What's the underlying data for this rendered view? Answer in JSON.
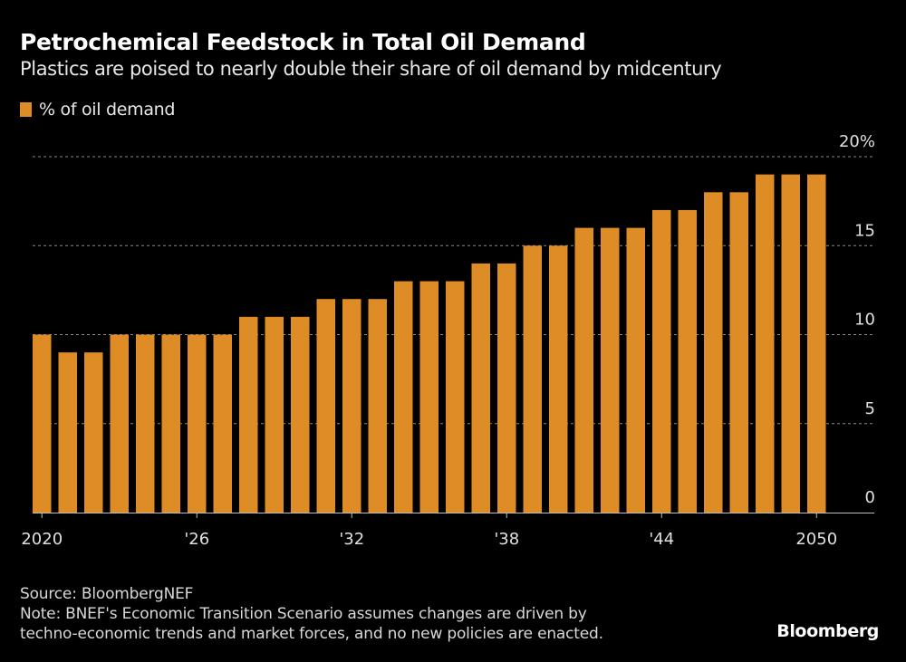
{
  "header": {
    "title": "Petrochemical Feedstock in Total Oil Demand",
    "subtitle": "Plastics are poised to nearly double their share of oil demand by midcentury"
  },
  "legend": {
    "label": "% of oil demand",
    "color": "#DE8C26"
  },
  "footer": {
    "source": "Source: BloombergNEF",
    "note_line1": "Note: BNEF's Economic Transition Scenario assumes changes are driven by",
    "note_line2": "techno-economic trends and market forces, and no new policies are enacted.",
    "brand": "Bloomberg"
  },
  "chart_data": {
    "type": "bar",
    "title": "Petrochemical Feedstock in Total Oil Demand",
    "subtitle": "Plastics are poised to nearly double their share of oil demand by midcentury",
    "xlabel": "",
    "ylabel": "",
    "categories": [
      2020,
      2021,
      2022,
      2023,
      2024,
      2025,
      2026,
      2027,
      2028,
      2029,
      2030,
      2031,
      2032,
      2033,
      2034,
      2035,
      2036,
      2037,
      2038,
      2039,
      2040,
      2041,
      2042,
      2043,
      2044,
      2045,
      2046,
      2047,
      2048,
      2049,
      2050
    ],
    "series": [
      {
        "name": "% of oil demand",
        "color": "#DE8C26",
        "values": [
          10,
          9,
          9,
          10,
          10,
          10,
          10,
          10,
          11,
          11,
          11,
          12,
          12,
          12,
          13,
          13,
          13,
          14,
          14,
          15,
          15,
          16,
          16,
          16,
          17,
          17,
          18,
          18,
          19,
          19,
          19
        ]
      }
    ],
    "ylim": [
      0,
      20
    ],
    "yticks": [
      0,
      5,
      10,
      15,
      20
    ],
    "ytick_labels": [
      "0",
      "5",
      "10",
      "15",
      "20%"
    ],
    "xticks": [
      2020,
      2026,
      2032,
      2038,
      2044,
      2050
    ],
    "xtick_labels": [
      "2020",
      "'26",
      "'32",
      "'38",
      "'44",
      "2050"
    ],
    "y_axis_side": "right",
    "grid": true,
    "legend_position": "top-left"
  }
}
